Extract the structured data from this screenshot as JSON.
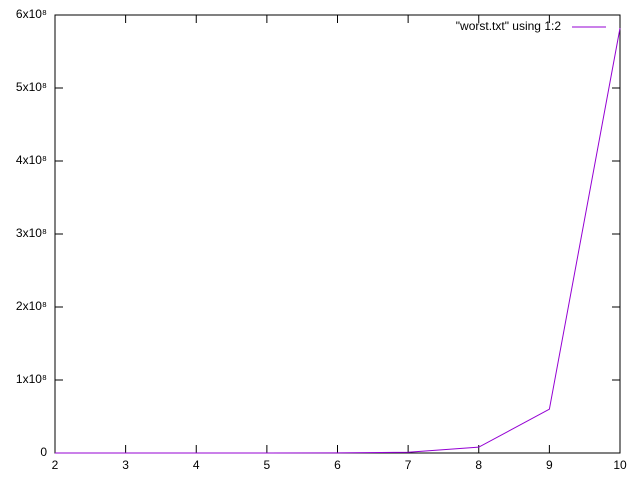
{
  "chart_data": {
    "type": "line",
    "x": [
      2,
      3,
      4,
      5,
      6,
      7,
      8,
      9,
      10
    ],
    "series": [
      {
        "name": "\"worst.txt\" using 1:2",
        "color": "#9400d3",
        "values": [
          10,
          100,
          1000,
          10000,
          100000,
          1000000,
          8000000,
          60000000,
          582000000
        ]
      }
    ],
    "xlim": [
      2,
      10
    ],
    "xticks": [
      2,
      3,
      4,
      5,
      6,
      7,
      8,
      9,
      10
    ],
    "ylim": [
      0,
      600000000
    ],
    "yticks": [
      0,
      {
        "value": 100000000,
        "label": "1x10⁸"
      },
      {
        "value": 200000000,
        "label": "2x10⁸"
      },
      {
        "value": 300000000,
        "label": "3x10⁸"
      },
      {
        "value": 400000000,
        "label": "4x10⁸"
      },
      {
        "value": 500000000,
        "label": "5x10⁸"
      },
      {
        "value": 600000000,
        "label": "6x10⁸"
      }
    ],
    "grid": false,
    "legend": "top-right"
  }
}
